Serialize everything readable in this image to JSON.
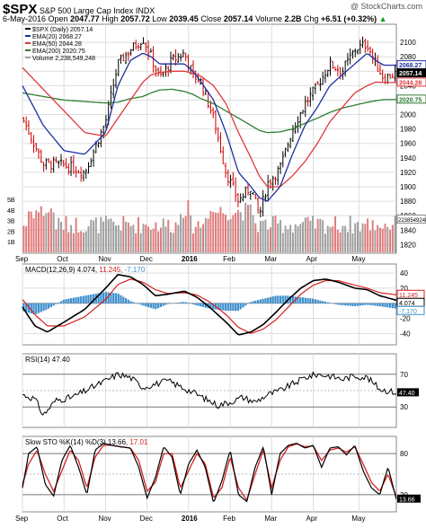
{
  "header": {
    "symbol": "$SPX",
    "name": "S&P 500 Large Cap Index",
    "exchange": "INDX",
    "watermark": "@ StockCharts.com",
    "date": "6-May-2016",
    "open_label": "Open",
    "open": "2047.77",
    "high_label": "High",
    "high": "2057.72",
    "low_label": "Low",
    "low": "2039.45",
    "close_label": "Close",
    "close": "2057.14",
    "volume_label": "Volume",
    "volume": "2.2B",
    "chg_label": "Chg",
    "chg": "+6.51 (+0.32%)",
    "chg_arrow": "▲"
  },
  "colors": {
    "price": "#000000",
    "up_bar": "#000000",
    "down_bar": "#cc0000",
    "ema20": "#1f2fa0",
    "ema50": "#e0383c",
    "ema200": "#2e7d32",
    "volume_up": "#9e9e9e",
    "volume_down": "#e07a7a",
    "macd": "#000000",
    "signal": "#d62020",
    "histogram": "#3d8fcc",
    "grid": "#dddddd"
  },
  "chart_data": [
    {
      "type": "line",
      "panel": "price",
      "legend": [
        {
          "key": "spx",
          "label": "$SPX (Daily) 2057.14",
          "color": "#000000"
        },
        {
          "key": "ema20",
          "label": "EMA(20) 2068.27",
          "color": "#1f2fa0"
        },
        {
          "key": "ema50",
          "label": "EMA(50) 2044.28",
          "color": "#e0383c"
        },
        {
          "key": "ema200",
          "label": "EMA(200) 2020.75",
          "color": "#2e7d32"
        },
        {
          "key": "volume",
          "label": "Volume 2,238,549,248",
          "color": "#9e9e9e"
        }
      ],
      "legend_placement": "top-left",
      "x_labels": [
        "Sep",
        "Oct",
        "Nov",
        "Dec",
        "2016",
        "Feb",
        "Mar",
        "Apr",
        "May"
      ],
      "x_label_positions": [
        0.5,
        1.5,
        2.5,
        3.5,
        4.5,
        5.5,
        6.5,
        7.5,
        8.6
      ],
      "yticks": [
        1820,
        1840,
        1860,
        1880,
        1900,
        1920,
        1940,
        1960,
        1980,
        2000,
        2020,
        2040,
        2060,
        2080,
        2100
      ],
      "ylim": [
        1808,
        2125
      ],
      "last_value_tags": [
        {
          "value": 2068.27,
          "label": "2068.27",
          "color": "#1f2fa0"
        },
        {
          "value": 2057.14,
          "label": "2057.14",
          "color": "#000000"
        },
        {
          "value": 2044.28,
          "label": "2044.28",
          "color": "#e0383c"
        },
        {
          "value": 2020.75,
          "label": "2020.75",
          "color": "#2e7d32"
        }
      ],
      "volume_ticks": [
        "1B",
        "2B",
        "3B",
        "4B",
        "5B"
      ],
      "volume_tag": "2238549248",
      "anchors": {
        "t": [
          0,
          0.5,
          1.0,
          1.5,
          2.0,
          2.3,
          2.6,
          2.9,
          3.1,
          3.3,
          3.6,
          3.9,
          4.1,
          4.3,
          4.6,
          4.9,
          5.2,
          5.5,
          5.7,
          5.9,
          6.2,
          6.5,
          6.8,
          7.1,
          7.4,
          7.7,
          8.0,
          8.3,
          8.5,
          8.7,
          9.0
        ],
        "close": [
          1995,
          1932,
          1930,
          1920,
          1990,
          2070,
          2090,
          2105,
          2080,
          2050,
          2075,
          2085,
          2055,
          2045,
          1995,
          1920,
          1880,
          1900,
          1860,
          1905,
          1925,
          1980,
          2015,
          2040,
          2070,
          2060,
          2090,
          2098,
          2070,
          2050,
          2057.14
        ]
      },
      "ema_anchors": {
        "ema20": [
          2040,
          1985,
          1950,
          1945,
          1975,
          2040,
          2075,
          2085,
          2080,
          2070,
          2070,
          2070,
          2060,
          2045,
          2020,
          1975,
          1920,
          1900,
          1885,
          1880,
          1900,
          1945,
          1985,
          2010,
          2040,
          2055,
          2070,
          2085,
          2075,
          2068.27,
          2068.27
        ],
        "ema50": [
          2065,
          2035,
          2005,
          1975,
          1970,
          1995,
          2020,
          2045,
          2055,
          2058,
          2060,
          2060,
          2057,
          2053,
          2040,
          2015,
          1975,
          1940,
          1915,
          1900,
          1900,
          1915,
          1935,
          1960,
          1990,
          2010,
          2030,
          2040,
          2045,
          2044.28,
          2044.28
        ],
        "ema200": [
          2030,
          2025,
          2020,
          2018,
          2016,
          2017,
          2022,
          2025,
          2030,
          2034,
          2035,
          2032,
          2028,
          2022,
          2015,
          2005,
          1995,
          1985,
          1978,
          1975,
          1976,
          1980,
          1988,
          1995,
          2003,
          2009,
          2013,
          2017,
          2019,
          2020.75,
          2020.75
        ]
      }
    },
    {
      "type": "line",
      "panel": "macd",
      "legend_label": "MACD(12,26,9)",
      "legend_values": [
        "4.074",
        "11.245",
        "-7.170"
      ],
      "tag_values": [
        {
          "value": 11.245,
          "label": "11.245",
          "color": "#d62020"
        },
        {
          "value": 4.074,
          "label": "4.074",
          "color": "#000000"
        },
        {
          "value": -7.17,
          "label": "-7.170",
          "color": "#3d8fcc"
        }
      ],
      "yticks": [
        40,
        20,
        0,
        -20,
        -40
      ],
      "ylim": [
        -55,
        52
      ],
      "anchors": {
        "t": [
          0,
          0.3,
          0.6,
          1.0,
          1.5,
          2.0,
          2.3,
          2.6,
          2.9,
          3.2,
          3.5,
          3.9,
          4.2,
          4.5,
          4.9,
          5.2,
          5.5,
          5.8,
          6.1,
          6.4,
          6.7,
          7.0,
          7.3,
          7.6,
          8.0,
          8.3,
          8.6,
          9.0
        ],
        "macd": [
          -5,
          -30,
          -38,
          -25,
          -8,
          20,
          38,
          35,
          25,
          10,
          12,
          16,
          8,
          -5,
          -25,
          -42,
          -38,
          -28,
          -12,
          5,
          20,
          30,
          32,
          28,
          20,
          18,
          10,
          4.074
        ],
        "signal": [
          5,
          -15,
          -30,
          -30,
          -18,
          5,
          25,
          32,
          28,
          18,
          13,
          14,
          11,
          2,
          -15,
          -32,
          -40,
          -34,
          -22,
          -5,
          12,
          24,
          30,
          30,
          24,
          20,
          14,
          11.245
        ]
      }
    },
    {
      "type": "line",
      "panel": "rsi",
      "legend_label": "RSI(14)",
      "legend_value": "47.40",
      "tag": {
        "value": 47.4,
        "label": "47.40"
      },
      "yticks": [
        30,
        70
      ],
      "ref_lines": [
        30,
        50,
        70
      ],
      "ylim": [
        5,
        95
      ],
      "anchors": {
        "t": [
          0,
          0.3,
          0.5,
          0.8,
          1.2,
          1.6,
          2.0,
          2.3,
          2.6,
          2.9,
          3.2,
          3.5,
          3.8,
          4.1,
          4.4,
          4.7,
          5.0,
          5.3,
          5.6,
          5.9,
          6.2,
          6.5,
          6.8,
          7.1,
          7.4,
          7.7,
          8.0,
          8.3,
          8.6,
          9.0
        ],
        "rsi": [
          45,
          40,
          20,
          38,
          42,
          52,
          62,
          70,
          66,
          54,
          58,
          62,
          55,
          48,
          40,
          32,
          36,
          42,
          36,
          45,
          50,
          58,
          66,
          70,
          68,
          64,
          68,
          66,
          52,
          47.4
        ]
      }
    },
    {
      "type": "line",
      "panel": "stoch",
      "legend_label": "Slow STO %K(14) %D(3)",
      "legend_values": [
        "13.66",
        "17.01"
      ],
      "tag": {
        "value": 13.66,
        "label": "13.66"
      },
      "yticks": [
        20,
        80
      ],
      "ref_lines": [
        20,
        50,
        80
      ],
      "ylim": [
        -5,
        105
      ],
      "anchors": {
        "t": [
          0,
          0.15,
          0.35,
          0.55,
          0.75,
          0.95,
          1.15,
          1.35,
          1.55,
          1.75,
          1.95,
          2.15,
          2.35,
          2.6,
          2.8,
          3.0,
          3.2,
          3.4,
          3.6,
          3.8,
          4.0,
          4.2,
          4.4,
          4.6,
          4.8,
          5.0,
          5.2,
          5.4,
          5.6,
          5.8,
          6.0,
          6.2,
          6.4,
          6.6,
          6.8,
          7.0,
          7.2,
          7.4,
          7.6,
          7.8,
          8.0,
          8.2,
          8.4,
          8.6,
          8.8,
          9.0
        ],
        "k": [
          30,
          80,
          90,
          35,
          18,
          70,
          92,
          60,
          20,
          85,
          95,
          92,
          90,
          88,
          60,
          15,
          45,
          90,
          75,
          20,
          65,
          85,
          60,
          8,
          40,
          85,
          20,
          10,
          60,
          90,
          20,
          80,
          92,
          95,
          88,
          92,
          60,
          88,
          90,
          78,
          92,
          55,
          30,
          20,
          60,
          13.66
        ],
        "d": [
          35,
          65,
          85,
          50,
          25,
          55,
          85,
          70,
          30,
          75,
          92,
          92,
          90,
          88,
          70,
          25,
          38,
          80,
          80,
          30,
          55,
          80,
          65,
          15,
          30,
          75,
          30,
          12,
          50,
          85,
          30,
          70,
          90,
          94,
          90,
          91,
          70,
          85,
          88,
          82,
          90,
          65,
          38,
          25,
          50,
          17.01
        ]
      }
    }
  ]
}
